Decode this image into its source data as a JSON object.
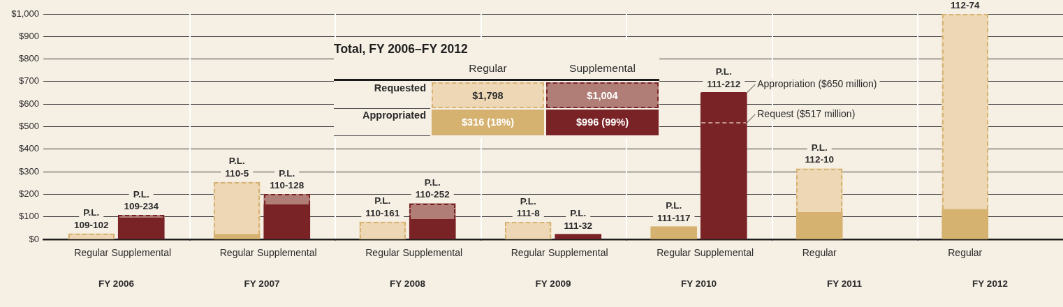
{
  "chart_data": [
    {
      "type": "bar",
      "stacked": true,
      "xlabel": "FY 2006",
      "categories": [
        "Regular",
        "Supplemental"
      ],
      "series": [
        {
          "colors": [
            "#d6b271",
            "#7a2327"
          ],
          "values": [
            0,
            95
          ]
        },
        {
          "colors": [
            "#edd7b5",
            "#b07e77"
          ],
          "line_style": "dashed",
          "values": [
            25,
            12
          ],
          "value_labels": [
            "P.L. 109-102",
            "P.L. 109-234"
          ]
        }
      ],
      "ylim": [
        0,
        1000
      ],
      "yticks": [
        {
          "value": 0,
          "label": "$0"
        },
        {
          "value": 100,
          "label": "$100"
        },
        {
          "value": 200,
          "label": "$200"
        },
        {
          "value": 300,
          "label": "$300"
        },
        {
          "value": 400,
          "label": "$400"
        },
        {
          "value": 500,
          "label": "$500"
        },
        {
          "value": 600,
          "label": "$600"
        },
        {
          "value": 700,
          "label": "$700"
        },
        {
          "value": 800,
          "label": "$800"
        },
        {
          "value": 900,
          "label": "$900"
        },
        {
          "value": 1000,
          "label": "$1,000"
        }
      ],
      "grid": "y"
    },
    {
      "type": "bar",
      "stacked": true,
      "xlabel": "FY 2007",
      "categories": [
        "Regular",
        "Supplemental"
      ],
      "series": [
        {
          "colors": [
            "#d6b271",
            "#7a2327"
          ],
          "values": [
            22,
            154
          ]
        },
        {
          "colors": [
            "#edd7b5",
            "#b07e77"
          ],
          "line_style": "dashed",
          "values": [
            232,
            46
          ],
          "value_labels": [
            "P.L. 110-5",
            "P.L. 110-128"
          ]
        }
      ],
      "ylim": [
        0,
        1000
      ],
      "yticks": [
        {
          "value": 0,
          "label": null
        },
        {
          "value": 100,
          "label": null
        },
        {
          "value": 200,
          "label": null
        },
        {
          "value": 300,
          "label": null
        },
        {
          "value": 400,
          "label": null
        },
        {
          "value": 500,
          "label": null
        },
        {
          "value": 600,
          "label": null
        },
        {
          "value": 700,
          "label": null
        },
        {
          "value": 800,
          "label": null
        },
        {
          "value": 900,
          "label": null
        },
        {
          "value": 1000,
          "label": null
        }
      ],
      "grid": "y",
      "tick_labels": "x"
    },
    {
      "type": "bar",
      "stacked": true,
      "xlabel": "FY 2008",
      "categories": [
        "Regular",
        "Supplemental"
      ],
      "series": [
        {
          "colors": [
            "#d6b271",
            "#7a2327"
          ],
          "values": [
            0,
            89
          ]
        },
        {
          "colors": [
            "#edd7b5",
            "#b07e77"
          ],
          "line_style": "dashed",
          "values": [
            77,
            70
          ],
          "value_labels": [
            "P.L. 110-161",
            "P.L. 110-252"
          ]
        }
      ],
      "ylim": [
        0,
        1000
      ],
      "yticks": [
        {
          "value": 0,
          "label": null
        },
        {
          "value": 100,
          "label": null
        },
        {
          "value": 200,
          "label": null
        },
        {
          "value": 300,
          "label": null
        },
        {
          "value": 400,
          "label": null
        },
        {
          "value": 500,
          "label": null
        },
        {
          "value": 600,
          "label": null
        },
        {
          "value": 700,
          "label": null
        },
        {
          "value": 800,
          "label": null
        },
        {
          "value": 900,
          "label": null
        },
        {
          "value": 1000,
          "label": null
        }
      ],
      "grid": "y",
      "tick_labels": "x"
    },
    {
      "type": "bar",
      "stacked": true,
      "xlabel": "FY 2009",
      "categories": [
        "Regular",
        "Supplemental"
      ],
      "series": [
        {
          "colors": [
            "#d6b271",
            "#7a2327"
          ],
          "values": [
            0,
            22
          ],
          "value_labels": [
            null,
            "P.L. 111-32"
          ]
        },
        {
          "colors": [
            "#edd7b5",
            "#b07e77"
          ],
          "line_style": "dashed",
          "values": [
            76,
            0
          ],
          "value_labels": [
            "P.L. 111-8",
            null
          ]
        }
      ],
      "ylim": [
        0,
        1000
      ],
      "yticks": [
        {
          "value": 0,
          "label": null
        },
        {
          "value": 100,
          "label": null
        },
        {
          "value": 200,
          "label": null
        },
        {
          "value": 300,
          "label": null
        },
        {
          "value": 400,
          "label": null
        },
        {
          "value": 500,
          "label": null
        },
        {
          "value": 600,
          "label": null
        },
        {
          "value": 700,
          "label": null
        },
        {
          "value": 800,
          "label": null
        },
        {
          "value": 900,
          "label": null
        },
        {
          "value": 1000,
          "label": null
        }
      ],
      "grid": "y",
      "tick_labels": "x"
    },
    {
      "type": "bar",
      "stacked": true,
      "xlabel": "FY 2010",
      "categories": [
        "Regular",
        "Supplemental"
      ],
      "series": [
        {
          "colors": [
            "#d6b271",
            "#7a2327"
          ],
          "values": [
            56,
            650
          ],
          "value_labels": [
            "P.L. 111-117",
            "P.L. 111-212"
          ]
        },
        {
          "colors": [
            "#edd7b5",
            "#b07e77"
          ],
          "line_style": "dashed",
          "values": [
            0,
            0
          ]
        }
      ],
      "ylim": [
        0,
        1000
      ],
      "yticks": [
        {
          "value": 0,
          "label": null
        },
        {
          "value": 100,
          "label": null
        },
        {
          "value": 200,
          "label": null
        },
        {
          "value": 300,
          "label": null
        },
        {
          "value": 400,
          "label": null
        },
        {
          "value": 500,
          "label": null
        },
        {
          "value": 600,
          "label": null
        },
        {
          "value": 700,
          "label": null
        },
        {
          "value": 800,
          "label": null
        },
        {
          "value": 900,
          "label": null
        },
        {
          "value": 1000,
          "label": null
        }
      ],
      "grid": "y",
      "tick_labels": "x",
      "ref_lines": [
        {
          "axis": "y",
          "value": 650,
          "label": "Appropriation ($650 million)",
          "color": "#7a2327"
        },
        {
          "axis": "y",
          "value": 517,
          "label": "Request ($517 million)",
          "color": "#bf958f",
          "line_style": "dashed"
        }
      ]
    },
    {
      "type": "bar",
      "stacked": true,
      "xlabel": "FY 2011",
      "categories": [
        "Regular"
      ],
      "series": [
        {
          "colors": [
            "#d6b271"
          ],
          "values": [
            120
          ]
        },
        {
          "colors": [
            "#edd7b5"
          ],
          "line_style": "dashed",
          "values": [
            194
          ],
          "value_labels": [
            "P.L. 112-10"
          ]
        }
      ],
      "ylim": [
        0,
        1000
      ],
      "yticks": [
        {
          "value": 0,
          "label": null
        },
        {
          "value": 100,
          "label": null
        },
        {
          "value": 200,
          "label": null
        },
        {
          "value": 300,
          "label": null
        },
        {
          "value": 400,
          "label": null
        },
        {
          "value": 500,
          "label": null
        },
        {
          "value": 600,
          "label": null
        },
        {
          "value": 700,
          "label": null
        },
        {
          "value": 800,
          "label": null
        },
        {
          "value": 900,
          "label": null
        },
        {
          "value": 1000,
          "label": null
        }
      ],
      "grid": "y",
      "tick_labels": "x"
    },
    {
      "type": "bar",
      "stacked": true,
      "xlabel": "FY 2012",
      "categories": [
        "Regular"
      ],
      "series": [
        {
          "colors": [
            "#d6b271"
          ],
          "values": [
            133
          ]
        },
        {
          "colors": [
            "#edd7b5"
          ],
          "line_style": "dashed",
          "values": [
            867
          ],
          "value_labels": [
            "112-74"
          ]
        }
      ],
      "ylim": [
        0,
        1000
      ],
      "yticks": [
        {
          "value": 0,
          "label": null
        },
        {
          "value": 100,
          "label": null
        },
        {
          "value": 200,
          "label": null
        },
        {
          "value": 300,
          "label": null
        },
        {
          "value": 400,
          "label": null
        },
        {
          "value": 500,
          "label": null
        },
        {
          "value": 600,
          "label": null
        },
        {
          "value": 700,
          "label": null
        },
        {
          "value": 800,
          "label": null
        },
        {
          "value": 900,
          "label": null
        },
        {
          "value": 1000,
          "label": null
        }
      ],
      "grid": "y",
      "tick_labels": "x"
    },
    {
      "type": "other",
      "title": "Total, FY 2006–FY 2012",
      "categories": [
        "Regular",
        "Supplemental"
      ],
      "series": [
        {
          "name": "Requested",
          "line_style": "dashed",
          "colors": [
            "#edd7b5",
            "#b07e77"
          ],
          "values": [
            1798,
            1004
          ],
          "value_labels": [
            "$1,798",
            "$1,004"
          ]
        },
        {
          "name": "Appropriated",
          "colors": [
            "#d6b271",
            "#7a2327"
          ],
          "values": [
            316,
            996
          ],
          "value_labels": [
            "$316 (18%)",
            "$996 (99%)"
          ]
        }
      ]
    }
  ]
}
